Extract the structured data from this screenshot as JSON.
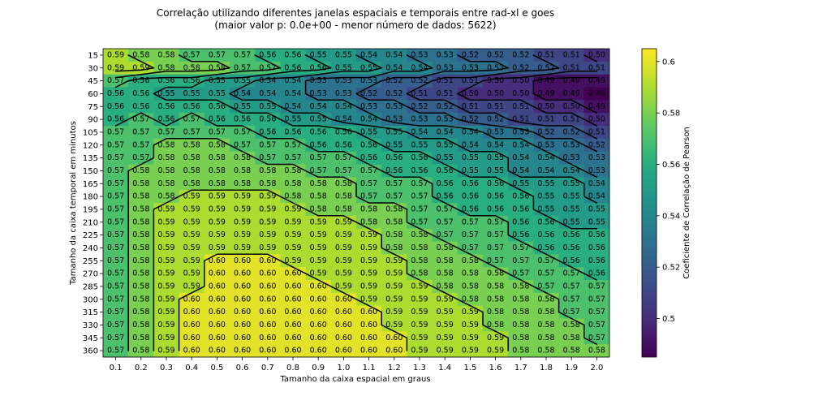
{
  "chart_data": {
    "type": "heatmap",
    "title": "Correlação utilizando diferentes janelas espaciais e temporais entre rad-xl e goes",
    "subtitle": "(maior valor p: 0.0e+00 - menor número de dados: 5622)",
    "xlabel": "Tamanho da caixa espacial em graus",
    "ylabel": "Tamanho da caixa temporal em minutos",
    "colorbar_label": "Coeficiente de Correlação de Pearson",
    "colormap": "viridis",
    "vmin": 0.485,
    "vmax": 0.605,
    "colorbar_ticks": [
      0.5,
      0.52,
      0.54,
      0.56,
      0.58,
      0.6
    ],
    "colorbar_tick_labels": [
      "0.5",
      "0.52",
      "0.54",
      "0.56",
      "0.58",
      "0.6"
    ],
    "x": [
      "0.1",
      "0.2",
      "0.3",
      "0.4",
      "0.5",
      "0.6",
      "0.7",
      "0.8",
      "0.9",
      "1.0",
      "1.1",
      "1.2",
      "1.3",
      "1.4",
      "1.5",
      "1.6",
      "1.7",
      "1.8",
      "1.9",
      "2.0"
    ],
    "y": [
      "15",
      "30",
      "45",
      "60",
      "75",
      "90",
      "105",
      "120",
      "135",
      "150",
      "165",
      "180",
      "195",
      "210",
      "225",
      "240",
      "255",
      "270",
      "285",
      "300",
      "315",
      "330",
      "345",
      "360"
    ],
    "values": [
      [
        0.59,
        0.58,
        0.58,
        0.57,
        0.57,
        0.57,
        0.56,
        0.56,
        0.55,
        0.55,
        0.54,
        0.54,
        0.53,
        0.53,
        0.52,
        0.52,
        0.52,
        0.51,
        0.51,
        0.5
      ],
      [
        0.59,
        0.59,
        0.58,
        0.58,
        0.58,
        0.57,
        0.57,
        0.56,
        0.56,
        0.55,
        0.55,
        0.54,
        0.54,
        0.53,
        0.53,
        0.53,
        0.52,
        0.52,
        0.51,
        0.51
      ],
      [
        0.57,
        0.56,
        0.56,
        0.56,
        0.55,
        0.55,
        0.54,
        0.54,
        0.53,
        0.53,
        0.53,
        0.52,
        0.52,
        0.51,
        0.51,
        0.5,
        0.5,
        0.49,
        0.49,
        0.49
      ],
      [
        0.56,
        0.56,
        0.55,
        0.55,
        0.55,
        0.54,
        0.54,
        0.54,
        0.53,
        0.53,
        0.52,
        0.52,
        0.51,
        0.51,
        0.5,
        0.5,
        0.5,
        0.49,
        0.49,
        0.48
      ],
      [
        0.56,
        0.56,
        0.56,
        0.56,
        0.56,
        0.55,
        0.55,
        0.54,
        0.54,
        0.54,
        0.53,
        0.53,
        0.52,
        0.52,
        0.51,
        0.51,
        0.51,
        0.5,
        0.5,
        0.49
      ],
      [
        0.56,
        0.57,
        0.56,
        0.57,
        0.56,
        0.56,
        0.56,
        0.55,
        0.55,
        0.54,
        0.54,
        0.53,
        0.53,
        0.53,
        0.52,
        0.52,
        0.51,
        0.51,
        0.51,
        0.5
      ],
      [
        0.57,
        0.57,
        0.57,
        0.57,
        0.57,
        0.57,
        0.56,
        0.56,
        0.56,
        0.56,
        0.55,
        0.55,
        0.54,
        0.54,
        0.54,
        0.53,
        0.53,
        0.52,
        0.52,
        0.51
      ],
      [
        0.57,
        0.57,
        0.58,
        0.58,
        0.58,
        0.57,
        0.57,
        0.57,
        0.56,
        0.56,
        0.56,
        0.55,
        0.55,
        0.55,
        0.54,
        0.54,
        0.54,
        0.53,
        0.53,
        0.52
      ],
      [
        0.57,
        0.57,
        0.58,
        0.58,
        0.58,
        0.58,
        0.57,
        0.57,
        0.57,
        0.57,
        0.56,
        0.56,
        0.56,
        0.55,
        0.55,
        0.55,
        0.54,
        0.54,
        0.53,
        0.53
      ],
      [
        0.57,
        0.58,
        0.58,
        0.58,
        0.58,
        0.58,
        0.58,
        0.58,
        0.57,
        0.57,
        0.57,
        0.56,
        0.56,
        0.56,
        0.55,
        0.55,
        0.54,
        0.54,
        0.54,
        0.53
      ],
      [
        0.57,
        0.58,
        0.58,
        0.58,
        0.58,
        0.58,
        0.58,
        0.58,
        0.58,
        0.58,
        0.57,
        0.57,
        0.57,
        0.56,
        0.56,
        0.56,
        0.55,
        0.55,
        0.55,
        0.54
      ],
      [
        0.57,
        0.58,
        0.58,
        0.59,
        0.59,
        0.59,
        0.59,
        0.58,
        0.58,
        0.58,
        0.57,
        0.57,
        0.57,
        0.56,
        0.56,
        0.56,
        0.56,
        0.55,
        0.55,
        0.54
      ],
      [
        0.57,
        0.58,
        0.59,
        0.59,
        0.59,
        0.59,
        0.59,
        0.59,
        0.58,
        0.58,
        0.58,
        0.58,
        0.57,
        0.57,
        0.56,
        0.56,
        0.56,
        0.55,
        0.55,
        0.55
      ],
      [
        0.57,
        0.58,
        0.59,
        0.59,
        0.59,
        0.59,
        0.59,
        0.59,
        0.59,
        0.59,
        0.58,
        0.58,
        0.57,
        0.57,
        0.57,
        0.57,
        0.56,
        0.56,
        0.55,
        0.55
      ],
      [
        0.57,
        0.58,
        0.59,
        0.59,
        0.59,
        0.59,
        0.59,
        0.59,
        0.59,
        0.59,
        0.59,
        0.58,
        0.58,
        0.57,
        0.57,
        0.57,
        0.56,
        0.56,
        0.56,
        0.56
      ],
      [
        0.57,
        0.58,
        0.59,
        0.59,
        0.59,
        0.59,
        0.59,
        0.59,
        0.59,
        0.59,
        0.59,
        0.58,
        0.58,
        0.58,
        0.57,
        0.57,
        0.57,
        0.56,
        0.56,
        0.56
      ],
      [
        0.57,
        0.58,
        0.59,
        0.59,
        0.6,
        0.6,
        0.6,
        0.59,
        0.59,
        0.59,
        0.59,
        0.59,
        0.58,
        0.58,
        0.58,
        0.57,
        0.57,
        0.57,
        0.56,
        0.56
      ],
      [
        0.57,
        0.58,
        0.59,
        0.59,
        0.6,
        0.6,
        0.6,
        0.6,
        0.59,
        0.59,
        0.59,
        0.59,
        0.58,
        0.58,
        0.58,
        0.58,
        0.57,
        0.57,
        0.57,
        0.56
      ],
      [
        0.57,
        0.58,
        0.59,
        0.59,
        0.6,
        0.6,
        0.6,
        0.6,
        0.6,
        0.59,
        0.59,
        0.59,
        0.59,
        0.58,
        0.58,
        0.58,
        0.58,
        0.57,
        0.57,
        0.57
      ],
      [
        0.57,
        0.58,
        0.59,
        0.6,
        0.6,
        0.6,
        0.6,
        0.6,
        0.6,
        0.6,
        0.59,
        0.59,
        0.59,
        0.59,
        0.58,
        0.58,
        0.58,
        0.58,
        0.57,
        0.57
      ],
      [
        0.57,
        0.58,
        0.59,
        0.6,
        0.6,
        0.6,
        0.6,
        0.6,
        0.6,
        0.6,
        0.6,
        0.59,
        0.59,
        0.59,
        0.59,
        0.58,
        0.58,
        0.58,
        0.57,
        0.57
      ],
      [
        0.57,
        0.58,
        0.59,
        0.6,
        0.6,
        0.6,
        0.6,
        0.6,
        0.6,
        0.6,
        0.6,
        0.59,
        0.59,
        0.59,
        0.59,
        0.58,
        0.58,
        0.58,
        0.58,
        0.57
      ],
      [
        0.57,
        0.58,
        0.59,
        0.6,
        0.6,
        0.6,
        0.6,
        0.6,
        0.6,
        0.6,
        0.6,
        0.6,
        0.59,
        0.59,
        0.59,
        0.59,
        0.58,
        0.58,
        0.58,
        0.57
      ],
      [
        0.57,
        0.58,
        0.59,
        0.6,
        0.6,
        0.6,
        0.6,
        0.6,
        0.6,
        0.6,
        0.6,
        0.6,
        0.59,
        0.59,
        0.59,
        0.59,
        0.58,
        0.58,
        0.58,
        0.58
      ]
    ],
    "contour_lines": "black",
    "grid": false,
    "legend": "colorbar-right"
  }
}
